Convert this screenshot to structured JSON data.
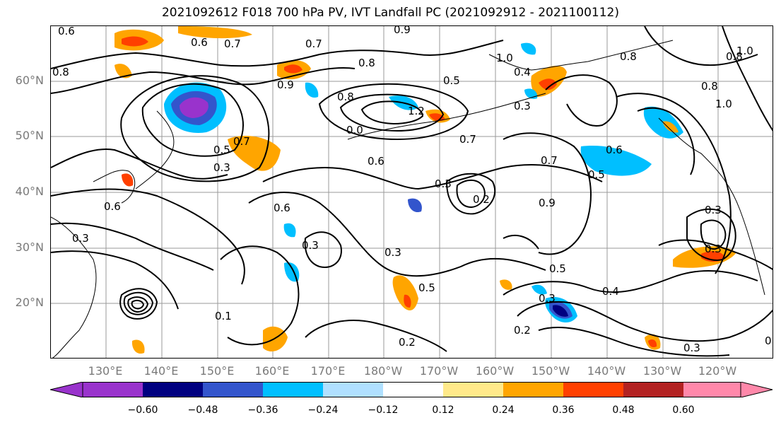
{
  "title": "2021092612 F018 700 hPa PV, IVT Landfall PC (2021092912 - 2021100112)",
  "lat_labels": [
    "60°N",
    "50°N",
    "40°N",
    "30°N",
    "20°N"
  ],
  "lon_labels": [
    "130°E",
    "140°E",
    "150°E",
    "160°E",
    "170°E",
    "180°W",
    "170°W",
    "160°W",
    "150°W",
    "140°W",
    "130°W",
    "120°W"
  ],
  "colorbar": {
    "colors": [
      "#9933cc",
      "#000080",
      "#3355cc",
      "#00bfff",
      "#b0e0ff",
      "#ffffff",
      "#ffe98a",
      "#ffa500",
      "#ff4000",
      "#b22222",
      "#ff88aa"
    ],
    "tick_labels": [
      "−0.60",
      "−0.48",
      "−0.36",
      "−0.24",
      "−0.12",
      "0.12",
      "0.24",
      "0.36",
      "0.48",
      "0.60"
    ]
  },
  "contour_labels": [
    "0.6",
    "0.6",
    "0.7",
    "0.7",
    "0.8",
    "0.8",
    "0.9",
    "0.9",
    "1.0",
    "1.0",
    "0.4",
    "0.3",
    "0.5",
    "0.8",
    "0.0",
    "1.2",
    "0.7",
    "0.8",
    "0.8",
    "1.0",
    "0.8",
    "0.6",
    "0.6",
    "0.3",
    "0.7",
    "0.5",
    "0.7",
    "0.3",
    "0.2",
    "0.6",
    "0.9",
    "0.5",
    "0.6",
    "0.3",
    "0.3",
    "0.3",
    "0.3",
    "0.5",
    "0.5",
    "0.4",
    "0.3",
    "0.2",
    "0.1",
    "0.2",
    "0.3",
    "0.3",
    "0.5"
  ]
}
